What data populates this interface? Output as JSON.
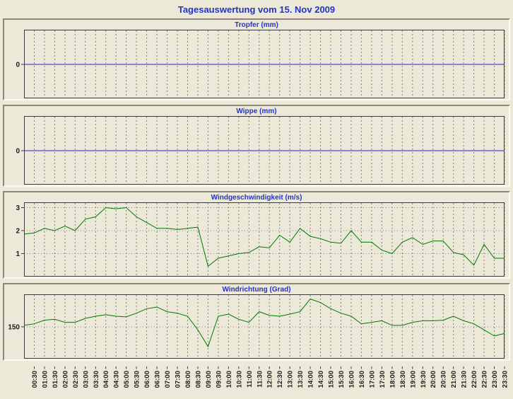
{
  "page": {
    "title": "Tagesauswertung vom 15. Nov 2009"
  },
  "colors": {
    "background": "#ece9d8",
    "title_text": "#2233cc",
    "plot_bg": "#ece9d8",
    "grid": "#7f7f7f",
    "axis": "#3c3c3c",
    "tick_label": "#1a1a1a",
    "rain_line": "#2222cc",
    "wind_line": "#007700"
  },
  "time_axis": {
    "start": "00:00",
    "interval_minutes": 30,
    "labels": [
      "00:30",
      "01:00",
      "01:30",
      "02:00",
      "02:30",
      "03:00",
      "03:30",
      "04:00",
      "04:30",
      "05:00",
      "05:30",
      "06:00",
      "06:30",
      "07:00",
      "07:30",
      "08:00",
      "08:30",
      "09:00",
      "09:30",
      "10:00",
      "10:30",
      "11:00",
      "11:30",
      "12:00",
      "12:30",
      "13:00",
      "13:30",
      "14:00",
      "14:30",
      "15:00",
      "15:30",
      "16:00",
      "16:30",
      "17:00",
      "17:30",
      "18:00",
      "18:30",
      "19:00",
      "19:30",
      "20:00",
      "20:30",
      "21:00",
      "21:30",
      "22:00",
      "22:30",
      "23:00",
      "23:30"
    ]
  },
  "chart_data": [
    {
      "type": "line",
      "title": "Tropfer (mm)",
      "ylim": [
        -1,
        1
      ],
      "yticks": [
        {
          "value": 0,
          "label": "0"
        }
      ],
      "line_color": "#2222cc",
      "x_start": "00:00",
      "x_interval_minutes": 30,
      "values": [
        0,
        0,
        0,
        0,
        0,
        0,
        0,
        0,
        0,
        0,
        0,
        0,
        0,
        0,
        0,
        0,
        0,
        0,
        0,
        0,
        0,
        0,
        0,
        0,
        0,
        0,
        0,
        0,
        0,
        0,
        0,
        0,
        0,
        0,
        0,
        0,
        0,
        0,
        0,
        0,
        0,
        0,
        0,
        0,
        0,
        0,
        0,
        0
      ]
    },
    {
      "type": "line",
      "title": "Wippe (mm)",
      "ylim": [
        -1,
        1
      ],
      "yticks": [
        {
          "value": 0,
          "label": "0"
        }
      ],
      "line_color": "#2222cc",
      "x_start": "00:00",
      "x_interval_minutes": 30,
      "values": [
        0,
        0,
        0,
        0,
        0,
        0,
        0,
        0,
        0,
        0,
        0,
        0,
        0,
        0,
        0,
        0,
        0,
        0,
        0,
        0,
        0,
        0,
        0,
        0,
        0,
        0,
        0,
        0,
        0,
        0,
        0,
        0,
        0,
        0,
        0,
        0,
        0,
        0,
        0,
        0,
        0,
        0,
        0,
        0,
        0,
        0,
        0,
        0
      ]
    },
    {
      "type": "line",
      "title": "Windgeschwindigkeit (m/s)",
      "ylim": [
        0,
        3.2
      ],
      "yticks": [
        {
          "value": 1,
          "label": "1"
        },
        {
          "value": 2,
          "label": "2"
        },
        {
          "value": 3,
          "label": "3"
        }
      ],
      "line_color": "#007700",
      "x_start": "00:00",
      "x_interval_minutes": 30,
      "values": [
        1.85,
        1.9,
        2.1,
        2.0,
        2.2,
        2.0,
        2.5,
        2.6,
        3.0,
        2.95,
        3.0,
        2.6,
        2.35,
        2.1,
        2.1,
        2.05,
        2.1,
        2.15,
        0.45,
        0.8,
        0.9,
        1.0,
        1.05,
        1.3,
        1.25,
        1.8,
        1.5,
        2.1,
        1.75,
        1.65,
        1.5,
        1.45,
        2.0,
        1.5,
        1.5,
        1.15,
        1.0,
        1.5,
        1.7,
        1.4,
        1.55,
        1.55,
        1.05,
        0.95,
        0.5,
        1.4,
        0.8,
        0.8
      ]
    },
    {
      "type": "line",
      "title": "Windrichtung (Grad)",
      "ylim": [
        45,
        255
      ],
      "yticks": [
        {
          "value": 150,
          "label": "150"
        }
      ],
      "line_color": "#007700",
      "x_start": "00:00",
      "x_interval_minutes": 30,
      "values": [
        155,
        160,
        172,
        175,
        165,
        165,
        178,
        185,
        190,
        185,
        183,
        195,
        210,
        215,
        200,
        195,
        185,
        140,
        85,
        185,
        192,
        175,
        165,
        200,
        188,
        185,
        192,
        200,
        242,
        230,
        210,
        195,
        185,
        160,
        165,
        170,
        155,
        155,
        165,
        170,
        170,
        172,
        185,
        170,
        160,
        140,
        120,
        128
      ]
    }
  ]
}
